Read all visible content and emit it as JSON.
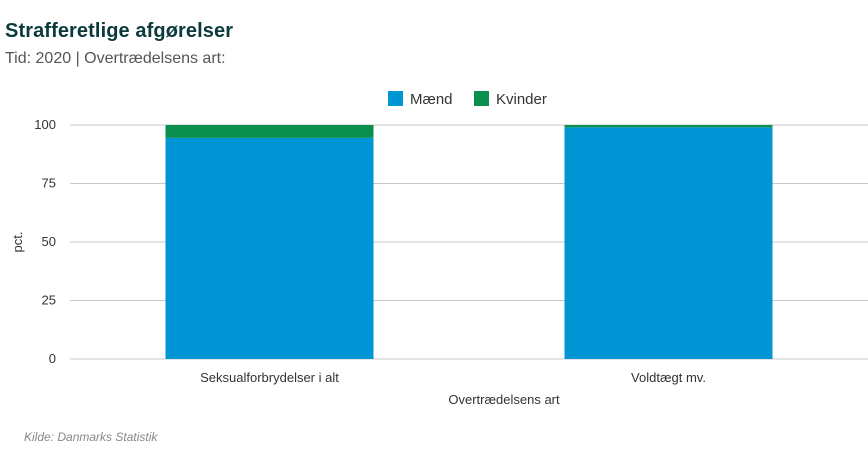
{
  "header": {
    "title": "Strafferetlige afgørelser",
    "subtitle": "Tid: 2020 | Overtrædelsens art:"
  },
  "footer": {
    "source": "Kilde: Danmarks Statistik"
  },
  "colors": {
    "maend": "#0096d6",
    "kvinder": "#0a8f4e",
    "grid": "#c8c8c8"
  },
  "chart_data": {
    "type": "bar",
    "stacked": true,
    "categories": [
      "Seksualforbrydelser i alt",
      "Voldtægt mv."
    ],
    "series": [
      {
        "name": "Mænd",
        "values": [
          94.5,
          99.0
        ]
      },
      {
        "name": "Kvinder",
        "values": [
          5.5,
          1.0
        ]
      }
    ],
    "xlabel": "Overtrædelsens art",
    "ylabel": "pct.",
    "ylim": [
      0,
      100
    ],
    "yticks": [
      0,
      25,
      50,
      75,
      100
    ],
    "grid": true,
    "legend": "top-center"
  }
}
